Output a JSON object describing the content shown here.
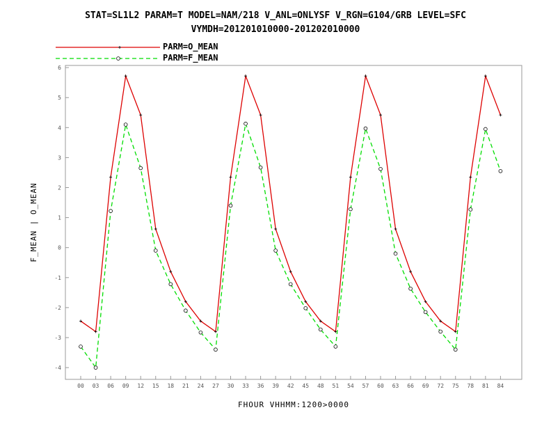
{
  "header": {
    "title_line1": "STAT=SL1L2 PARAM=T MODEL=NAM/218 V_ANL=ONLYSF V_RGN=G104/GRB LEVEL=SFC",
    "title_line2": "VYMDH=201201010000-201202010000"
  },
  "colors": {
    "o_mean": "#dd0000",
    "f_mean": "#00dd00",
    "frame": "#999999"
  },
  "chart_data": {
    "type": "line",
    "title": "STAT=SL1L2 PARAM=T MODEL=NAM/218 V_ANL=ONLYSF V_RGN=G104/GRB LEVEL=SFC",
    "subtitle": "VYMDH=201201010000-201202010000",
    "xlabel": "FHOUR VHHMM:1200>0000",
    "ylabel": "F_MEAN | O_MEAN",
    "ylim": [
      -4.4,
      6.1
    ],
    "yticks": [
      -4,
      -3,
      -2,
      -1,
      0,
      1,
      2,
      3,
      4,
      5,
      6
    ],
    "grid": false,
    "legend_position": "top-left",
    "categories": [
      "00",
      "03",
      "06",
      "09",
      "12",
      "15",
      "18",
      "21",
      "24",
      "27",
      "30",
      "33",
      "36",
      "39",
      "42",
      "45",
      "48",
      "51",
      "54",
      "57",
      "60",
      "63",
      "66",
      "69",
      "72",
      "75",
      "78",
      "81",
      "84"
    ],
    "series": [
      {
        "name": "PARM=O_MEAN",
        "color": "#dd0000",
        "style": "solid",
        "marker": "plus",
        "values": [
          -2.45,
          -2.8,
          2.35,
          5.72,
          4.42,
          0.62,
          -0.8,
          -1.8,
          -2.45,
          -2.8,
          2.35,
          5.72,
          4.42,
          0.62,
          -0.8,
          -1.8,
          -2.45,
          -2.8,
          2.35,
          5.72,
          4.42,
          0.62,
          -0.8,
          -1.8,
          -2.45,
          -2.8,
          2.35,
          5.72,
          4.42
        ]
      },
      {
        "name": "PARM=F_MEAN",
        "color": "#00dd00",
        "style": "dashed",
        "marker": "circle",
        "values": [
          -3.3,
          -4.0,
          1.22,
          4.1,
          2.65,
          -0.1,
          -1.22,
          -2.1,
          -2.83,
          -3.4,
          1.4,
          4.13,
          2.67,
          -0.1,
          -1.22,
          -2.02,
          -2.73,
          -3.3,
          1.28,
          3.97,
          2.62,
          -0.2,
          -1.37,
          -2.15,
          -2.8,
          -3.4,
          1.27,
          3.95,
          2.55
        ]
      }
    ]
  }
}
